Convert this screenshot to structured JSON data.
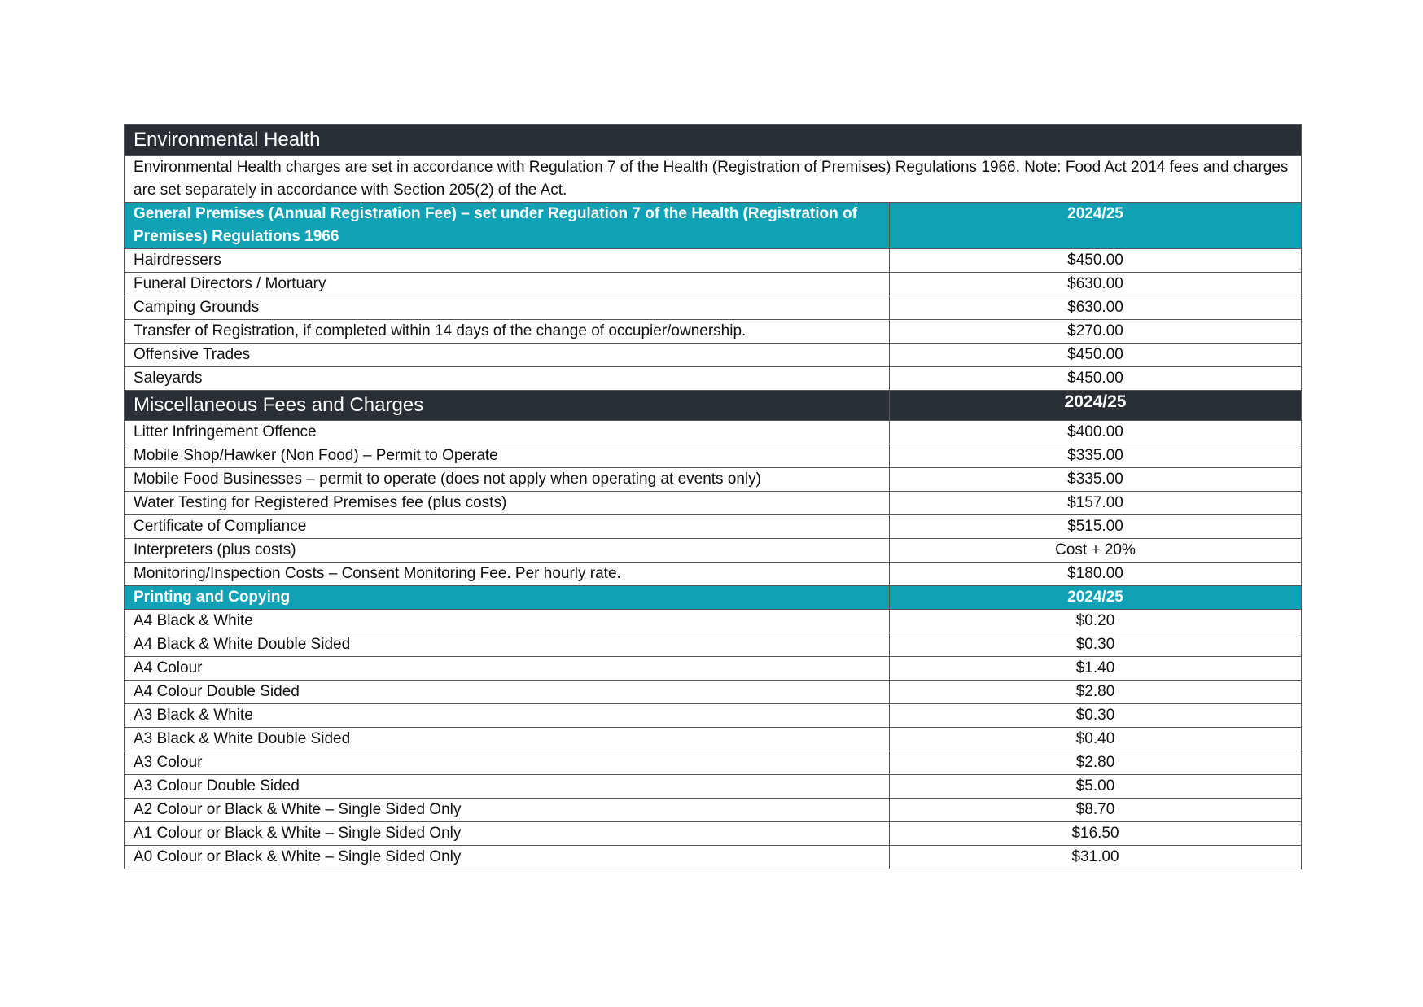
{
  "title": "Environmental Health",
  "description": "Environmental Health charges are set in accordance with Regulation 7 of the Health (Registration of Premises) Regulations 1966. Note: Food Act 2014 fees and charges are set separately in accordance with Section 205(2) of the Act.",
  "sections": [
    {
      "style": "teal",
      "heading": "General Premises (Annual Registration Fee) – set under Regulation 7 of the Health (Registration of Premises) Regulations 1966",
      "column_header": "2024/25",
      "rows": [
        [
          "Hairdressers",
          "$450.00"
        ],
        [
          "Funeral Directors / Mortuary",
          "$630.00"
        ],
        [
          "Camping Grounds",
          "$630.00"
        ],
        [
          "Transfer of Registration, if completed within 14 days of the change of occupier/ownership.",
          "$270.00"
        ],
        [
          "Offensive Trades",
          "$450.00"
        ],
        [
          "Saleyards",
          "$450.00"
        ]
      ]
    },
    {
      "style": "dark",
      "heading": "Miscellaneous Fees and Charges",
      "column_header": "2024/25",
      "rows": [
        [
          "Litter Infringement Offence",
          "$400.00"
        ],
        [
          "Mobile Shop/Hawker (Non Food) – Permit to Operate",
          "$335.00"
        ],
        [
          "Mobile Food Businesses – permit to operate (does not apply when operating at events only)",
          "$335.00"
        ],
        [
          "Water Testing for Registered Premises fee (plus costs)",
          "$157.00"
        ],
        [
          "Certificate of Compliance",
          "$515.00"
        ],
        [
          "Interpreters (plus costs)",
          "Cost + 20%"
        ],
        [
          "Monitoring/Inspection Costs – Consent Monitoring Fee. Per hourly rate.",
          "$180.00"
        ]
      ]
    },
    {
      "style": "teal",
      "heading": "Printing and Copying",
      "column_header": "2024/25",
      "rows": [
        [
          "A4 Black & White",
          "$0.20"
        ],
        [
          "A4 Black & White Double Sided",
          "$0.30"
        ],
        [
          "A4 Colour",
          "$1.40"
        ],
        [
          "A4 Colour Double Sided",
          "$2.80"
        ],
        [
          "A3 Black & White",
          "$0.30"
        ],
        [
          "A3 Black & White Double Sided",
          "$0.40"
        ],
        [
          "A3 Colour",
          "$2.80"
        ],
        [
          "A3 Colour Double Sided",
          "$5.00"
        ],
        [
          "A2 Colour or Black & White – Single Sided Only",
          "$8.70"
        ],
        [
          "A1 Colour or Black & White – Single Sided Only",
          "$16.50"
        ],
        [
          "A0 Colour or Black & White – Single Sided Only",
          "$31.00"
        ]
      ]
    }
  ]
}
